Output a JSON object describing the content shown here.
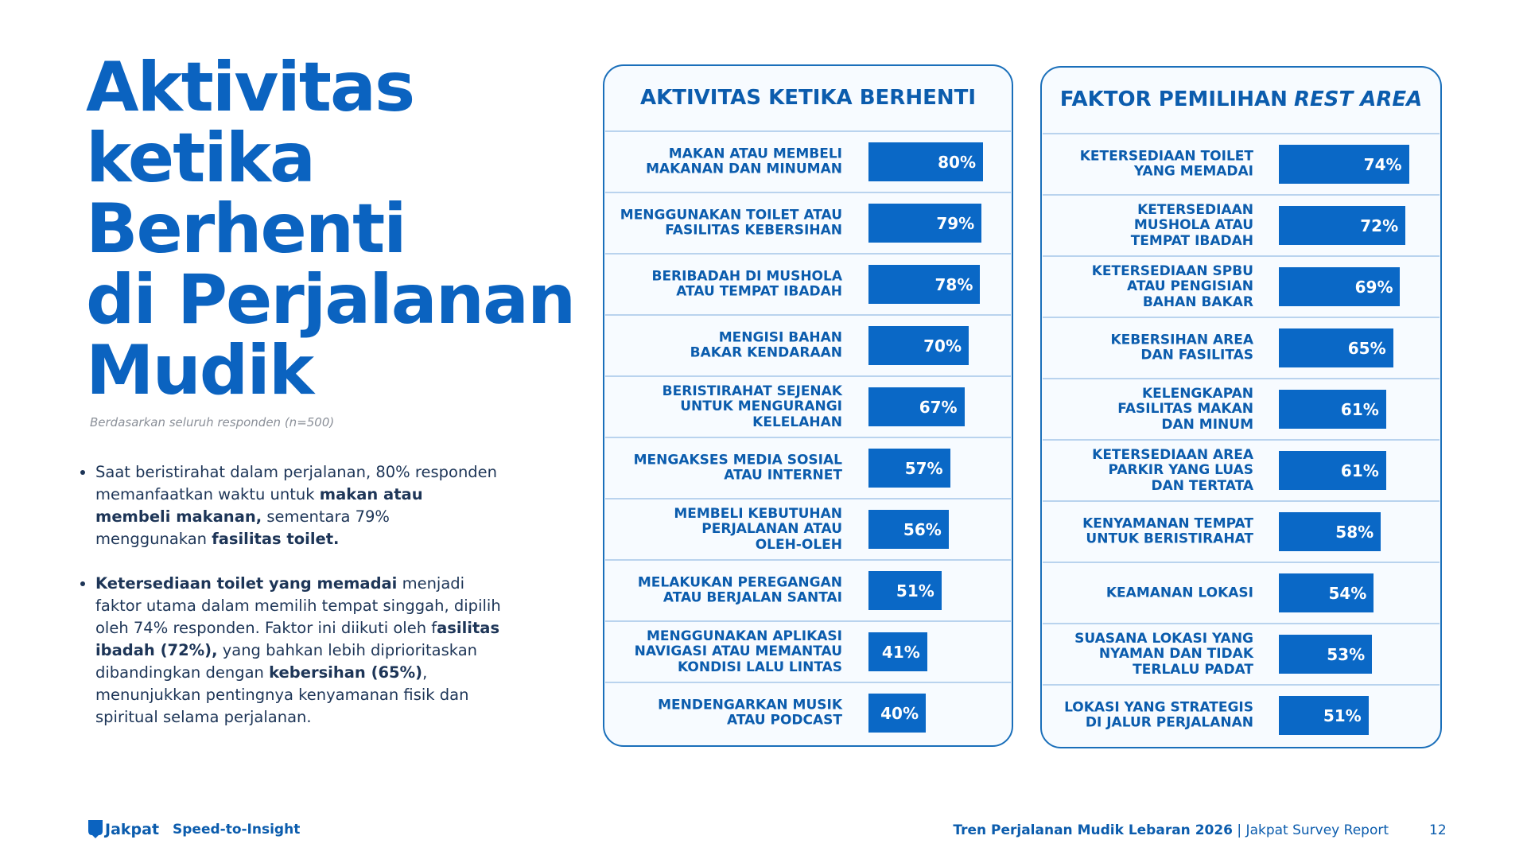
{
  "page": {
    "title": "Aktivitas\nketika\nBerhenti\ndi Perjalanan\nMudik",
    "note": "Berdasarkan seluruh responden (n=500)",
    "bullets": [
      [
        {
          "text": "Saat beristirahat dalam perjalanan, 80% responden memanfaatkan waktu untuk ",
          "bold": false
        },
        {
          "text": "makan atau membeli makanan,",
          "bold": true
        },
        {
          "text": " sementara 79% menggunakan ",
          "bold": false
        },
        {
          "text": "fasilitas toilet.",
          "bold": true
        }
      ],
      [
        {
          "text": "Ketersediaan toilet yang memadai",
          "bold": true
        },
        {
          "text": " menjadi faktor utama dalam memilih tempat singgah, dipilih oleh 74% responden. Faktor ini diikuti oleh f",
          "bold": false
        },
        {
          "text": "asilitas ibadah (72%),",
          "bold": true
        },
        {
          "text": " yang bahkan lebih diprioritaskan dibandingkan dengan ",
          "bold": false
        },
        {
          "text": "kebersihan (65%)",
          "bold": true
        },
        {
          "text": ", menunjukkan pentingnya kenyamanan fisik dan spiritual selama perjalanan.",
          "bold": false
        }
      ]
    ],
    "brand": "Jakpat",
    "tagline": "Speed-to-Insight",
    "report_title": "Tren Perjalanan Mudik Lebaran 2026",
    "report_source": "| Jakpat Survey Report",
    "page_number": 12
  },
  "chart_data": [
    {
      "type": "bar",
      "orientation": "horizontal",
      "title": "AKTIVITAS KETIKA BERHENTI",
      "color": "#0a68c6",
      "categories": [
        "MAKAN ATAU MEMBELI\nMAKANAN DAN MINUMAN",
        "MENGGUNAKAN TOILET ATAU\nFASILITAS KEBERSIHAN",
        "BERIBADAH DI MUSHOLA\nATAU TEMPAT IBADAH",
        "MENGISI BAHAN\nBAKAR KENDARAAN",
        "BERISTIRAHAT SEJENAK\nUNTUK MENGURANGI\nKELELAHAN",
        "MENGAKSES MEDIA SOSIAL\nATAU INTERNET",
        "MEMBELI KEBUTUHAN\nPERJALANAN ATAU\nOLEH-OLEH",
        "MELAKUKAN PEREGANGAN\nATAU BERJALAN SANTAI",
        "MENGGUNAKAN APLIKASI\nNAVIGASI ATAU MEMANTAU\nKONDISI LALU LINTAS",
        "MENDENGARKAN MUSIK\nATAU PODCAST"
      ],
      "values": [
        80,
        79,
        78,
        70,
        67,
        57,
        56,
        51,
        41,
        40
      ],
      "value_labels": [
        "80%",
        "79%",
        "78%",
        "70%",
        "67%",
        "57%",
        "56%",
        "51%",
        "41%",
        "40%"
      ]
    },
    {
      "type": "bar",
      "orientation": "horizontal",
      "title": "FAKTOR PEMILIHAN",
      "title_italic": "REST AREA",
      "color": "#0a68c6",
      "categories": [
        "KETERSEDIAAN TOILET\nYANG MEMADAI",
        "KETERSEDIAAN\nMUSHOLA ATAU\nTEMPAT IBADAH",
        "KETERSEDIAAN SPBU\nATAU PENGISIAN\nBAHAN BAKAR",
        "KEBERSIHAN AREA\nDAN FASILITAS",
        "KELENGKAPAN\nFASILITAS MAKAN\nDAN MINUM",
        "KETERSEDIAAN AREA\nPARKIR YANG LUAS\nDAN TERTATA",
        "KENYAMANAN TEMPAT\nUNTUK BERISTIRAHAT",
        "KEAMANAN LOKASI",
        "SUASANA LOKASI YANG\nNYAMAN DAN TIDAK\nTERLALU PADAT",
        "LOKASI YANG STRATEGIS\nDI JALUR PERJALANAN"
      ],
      "values": [
        74,
        72,
        69,
        65,
        61,
        61,
        58,
        54,
        53,
        51
      ],
      "value_labels": [
        "74%",
        "72%",
        "69%",
        "65%",
        "61%",
        "61%",
        "58%",
        "54%",
        "53%",
        "51%"
      ]
    }
  ]
}
